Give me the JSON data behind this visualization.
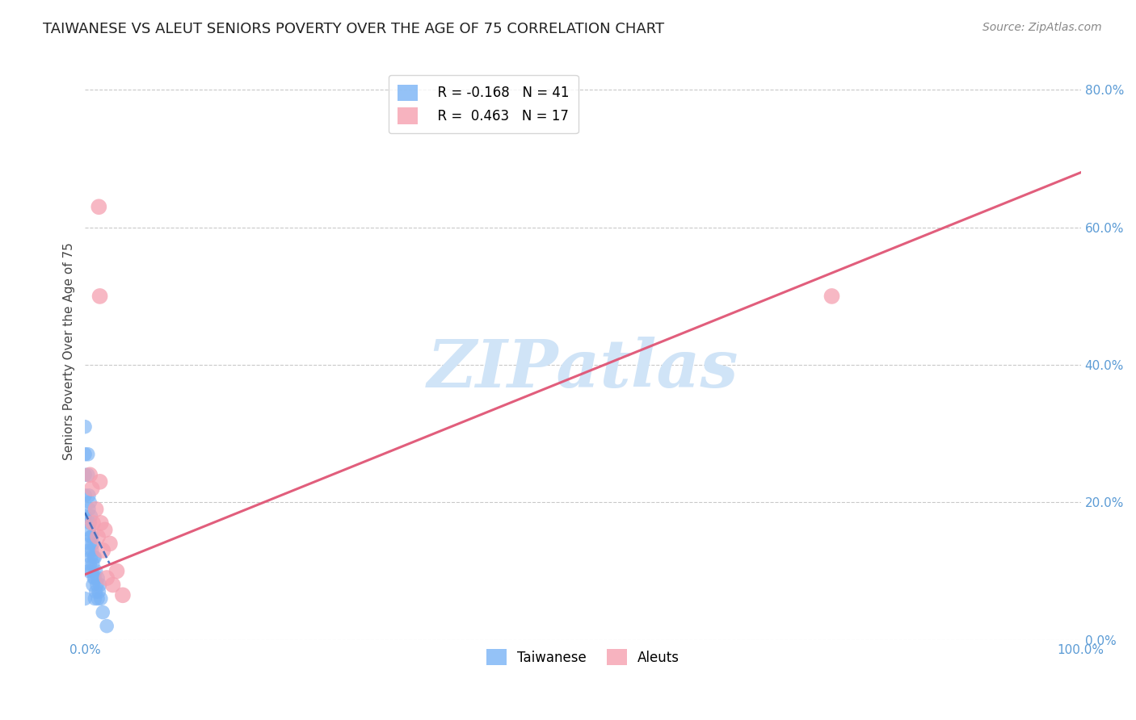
{
  "title": "TAIWANESE VS ALEUT SENIORS POVERTY OVER THE AGE OF 75 CORRELATION CHART",
  "source": "Source: ZipAtlas.com",
  "tick_color": "#5b9bd5",
  "ylabel": "Seniors Poverty Over the Age of 75",
  "xlim": [
    0,
    1.0
  ],
  "ylim": [
    0,
    0.84
  ],
  "x_ticks": [
    0.0,
    0.1,
    0.2,
    0.3,
    0.4,
    0.5,
    0.6,
    0.7,
    0.8,
    0.9,
    1.0
  ],
  "y_ticks_right": [
    0.0,
    0.2,
    0.4,
    0.6,
    0.8
  ],
  "y_tick_labels_right": [
    "0.0%",
    "20.0%",
    "40.0%",
    "60.0%",
    "80.0%"
  ],
  "taiwanese_color": "#7ab3f5",
  "aleut_color": "#f5a0b0",
  "taiwanese_line_color": "#3366bb",
  "aleut_line_color": "#e05575",
  "legend_R_taiwanese": "R = -0.168",
  "legend_N_taiwanese": "N = 41",
  "legend_R_aleut": "R =  0.463",
  "legend_N_aleut": "N = 17",
  "watermark": "ZIPatlas",
  "watermark_color": "#d0e4f7",
  "background_color": "#ffffff",
  "grid_color": "#bbbbbb",
  "title_fontsize": 13,
  "axis_label_color": "#444444",
  "taiwanese_points_x": [
    0.0,
    0.0,
    0.0,
    0.0,
    0.0,
    0.0,
    0.003,
    0.003,
    0.004,
    0.004,
    0.004,
    0.004,
    0.004,
    0.005,
    0.005,
    0.005,
    0.005,
    0.006,
    0.006,
    0.006,
    0.007,
    0.007,
    0.007,
    0.008,
    0.008,
    0.008,
    0.009,
    0.009,
    0.01,
    0.01,
    0.01,
    0.011,
    0.011,
    0.012,
    0.013,
    0.013,
    0.014,
    0.015,
    0.016,
    0.018,
    0.022
  ],
  "taiwanese_points_y": [
    0.31,
    0.27,
    0.24,
    0.21,
    0.18,
    0.06,
    0.27,
    0.24,
    0.21,
    0.19,
    0.16,
    0.13,
    0.1,
    0.2,
    0.17,
    0.14,
    0.11,
    0.18,
    0.15,
    0.12,
    0.15,
    0.13,
    0.1,
    0.14,
    0.11,
    0.08,
    0.12,
    0.09,
    0.12,
    0.09,
    0.06,
    0.1,
    0.07,
    0.08,
    0.09,
    0.06,
    0.07,
    0.08,
    0.06,
    0.04,
    0.02
  ],
  "aleut_points_x": [
    0.005,
    0.007,
    0.008,
    0.011,
    0.013,
    0.015,
    0.016,
    0.018,
    0.02,
    0.022,
    0.025,
    0.028,
    0.032,
    0.038,
    0.015,
    0.75,
    0.014
  ],
  "aleut_points_y": [
    0.24,
    0.22,
    0.17,
    0.19,
    0.15,
    0.23,
    0.17,
    0.13,
    0.16,
    0.09,
    0.14,
    0.08,
    0.1,
    0.065,
    0.5,
    0.5,
    0.63
  ],
  "aleut_trend_x": [
    0.0,
    1.0
  ],
  "aleut_trend_y": [
    0.095,
    0.68
  ],
  "taiwanese_trend_x": [
    0.0,
    0.025
  ],
  "taiwanese_trend_y": [
    0.185,
    0.11
  ]
}
